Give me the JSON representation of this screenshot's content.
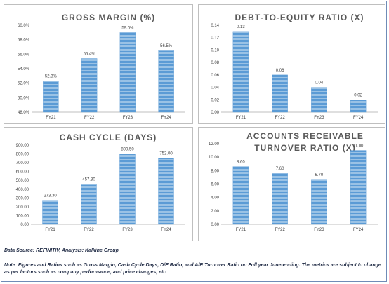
{
  "colors": {
    "bar": "#5b9bd5",
    "bar_stripe": "#ffffff",
    "axis": "#bfbfbf",
    "grid": "#d9d9d9"
  },
  "chart_data": [
    {
      "id": "gross-margin",
      "type": "bar",
      "title": "GROSS MARGIN (%)",
      "categories": [
        "FY21",
        "FY22",
        "FY23",
        "FY24"
      ],
      "values": [
        52.3,
        55.4,
        59.0,
        56.5
      ],
      "data_labels": [
        "52.3%",
        "55.4%",
        "59.0%",
        "56.5%"
      ],
      "ylim": [
        48,
        60
      ],
      "yticks": [
        48,
        50,
        52,
        54,
        56,
        58,
        60
      ],
      "ytick_labels": [
        "48.0%",
        "50.0%",
        "52.0%",
        "54.0%",
        "56.0%",
        "58.0%",
        "60.0%"
      ],
      "grid": false
    },
    {
      "id": "debt-to-equity",
      "type": "bar",
      "title": "DEBT-TO-EQUITY RATIO (X)",
      "categories": [
        "FY21",
        "FY22",
        "FY23",
        "FY24"
      ],
      "values": [
        0.13,
        0.06,
        0.04,
        0.02
      ],
      "data_labels": [
        "0.13",
        "0.06",
        "0.04",
        "0.02"
      ],
      "ylim": [
        0,
        0.14
      ],
      "yticks": [
        0,
        0.02,
        0.04,
        0.06,
        0.08,
        0.1,
        0.12,
        0.14
      ],
      "ytick_labels": [
        "0.00",
        "0.02",
        "0.04",
        "0.06",
        "0.08",
        "0.10",
        "0.12",
        "0.14"
      ],
      "grid": false
    },
    {
      "id": "cash-cycle",
      "type": "bar",
      "title": "CASH CYCLE (DAYS)",
      "categories": [
        "FY21",
        "FY22",
        "FY23",
        "FY24"
      ],
      "values": [
        273.3,
        457.3,
        800.5,
        752.0
      ],
      "data_labels": [
        "273.30",
        "457.30",
        "800.50",
        "752.00"
      ],
      "ylim": [
        0,
        900
      ],
      "yticks": [
        0,
        100,
        200,
        300,
        400,
        500,
        600,
        700,
        800,
        900
      ],
      "ytick_labels": [
        "0.00",
        "100.00",
        "200.00",
        "300.00",
        "400.00",
        "500.00",
        "600.00",
        "700.00",
        "800.00",
        "900.00"
      ],
      "grid": false
    },
    {
      "id": "ar-turnover",
      "type": "bar",
      "title": [
        "ACCOUNTS RECEIVABLE",
        "TURNOVER RATIO (X)"
      ],
      "categories": [
        "FY21",
        "FY22",
        "FY23",
        "FY24"
      ],
      "values": [
        8.6,
        7.6,
        6.7,
        11.0
      ],
      "data_labels": [
        "8.60",
        "7.60",
        "6.70",
        "11.00"
      ],
      "ylim": [
        0,
        12
      ],
      "yticks": [
        0,
        2,
        4,
        6,
        8,
        10,
        12
      ],
      "ytick_labels": [
        "0.00",
        "2.00",
        "4.00",
        "6.00",
        "8.00",
        "10.00",
        "12.00"
      ],
      "grid": false
    }
  ],
  "footer": {
    "source": "Data Source: REFINITIV, Analysis: Kalkine Group",
    "note": "Note: Figures and Ratios such as Gross Margin, Cash Cycle Days, D/E Ratio, and A/R Turnover Ratio on Full  year June-ending. The metrics are subject to change as per factors such as company performance, and price changes, etc"
  }
}
